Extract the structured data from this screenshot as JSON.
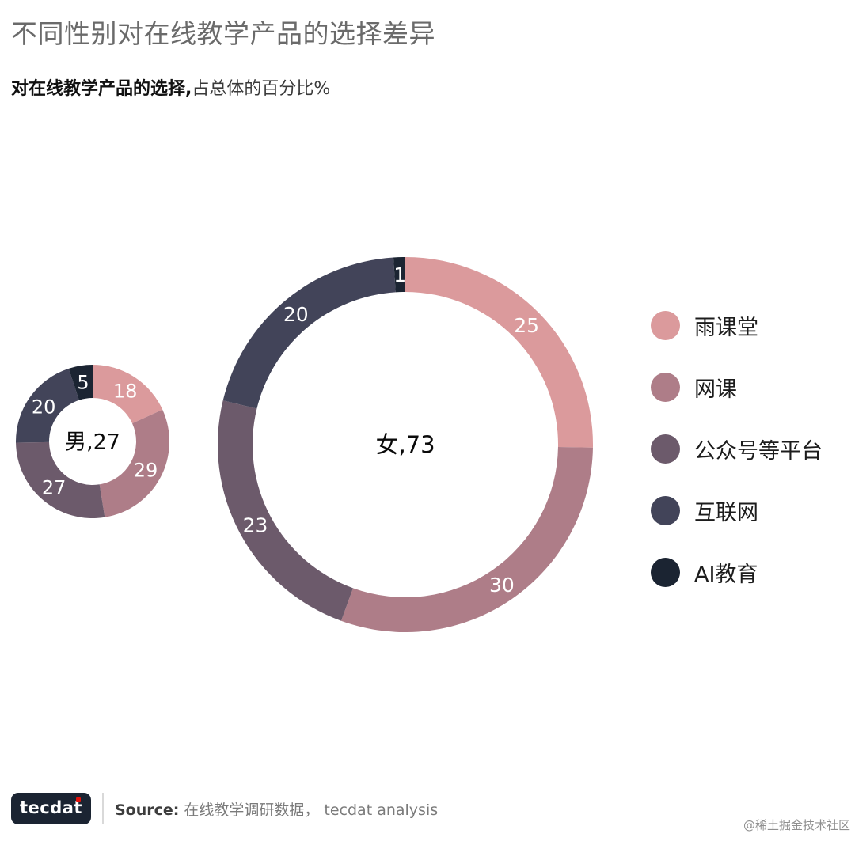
{
  "page": {
    "title": "不同性别对在线教学产品的选择差异",
    "subtitle_bold": "对在线教学产品的选择,",
    "subtitle_rest": "占总体的百分比%"
  },
  "chart_data": {
    "type": "pie",
    "subtype": "double-donut",
    "title": "不同性别对在线教学产品的选择差异",
    "unit": "%",
    "categories": [
      "雨课堂",
      "网课",
      "公众号等平台",
      "互联网",
      "AI教育"
    ],
    "colors": [
      "#DB9A9C",
      "#AE7D88",
      "#6C5A6B",
      "#424459",
      "#1B2432"
    ],
    "charts": [
      {
        "group": "男",
        "group_total": 27,
        "center_label": "男,27",
        "values": [
          18,
          29,
          27,
          20,
          5
        ]
      },
      {
        "group": "女",
        "group_total": 73,
        "center_label": "女,73",
        "values": [
          25,
          30,
          23,
          20,
          1
        ]
      }
    ],
    "legend_position": "right",
    "start_angle_deg": 0,
    "direction": "clockwise"
  },
  "footer": {
    "logo_text": "tecdat",
    "source_label": "Source:",
    "source_text": "在线教学调研数据， tecdat analysis",
    "watermark": "@稀土掘金技术社区"
  }
}
